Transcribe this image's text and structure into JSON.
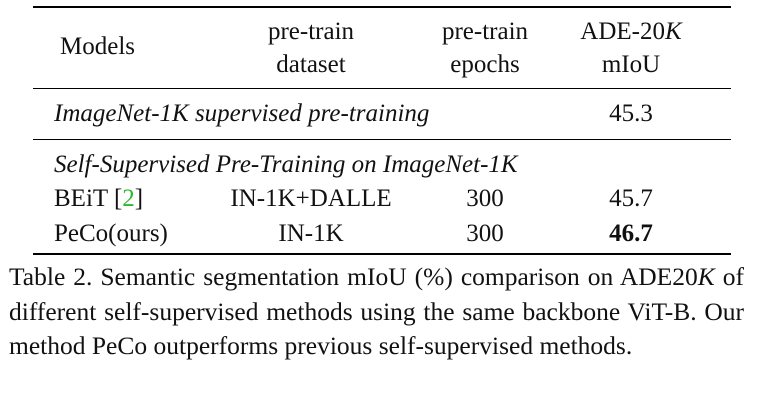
{
  "table": {
    "headers": {
      "models": "Models",
      "dataset_line1": "pre-train",
      "dataset_line2": "dataset",
      "epochs_line1": "pre-train",
      "epochs_line2": "epochs",
      "ade_line1_prefix": "ADE-20",
      "ade_line1_k": "K",
      "ade_line2": "mIoU"
    },
    "supervised_row": {
      "label": "ImageNet-1K supervised pre-training",
      "miou": "45.3"
    },
    "self_supervised_section": {
      "label": "Self-Supervised Pre-Training on ImageNet-1K",
      "rows": [
        {
          "model": "BEiT",
          "cite": "2",
          "dataset": "IN-1K+DALLE",
          "epochs": "300",
          "miou": "45.7"
        },
        {
          "model": "PeCo(ours)",
          "cite": "",
          "dataset": "IN-1K",
          "epochs": "300",
          "miou": "46.7"
        }
      ]
    }
  },
  "caption": {
    "prefix": "Table 2.   Semantic segmentation mIoU (%) comparison on ADE20",
    "k": "K",
    "suffix": " of different self-supervised methods using the same backbone ViT-B. Our method PeCo outperforms previous self-supervised methods."
  }
}
